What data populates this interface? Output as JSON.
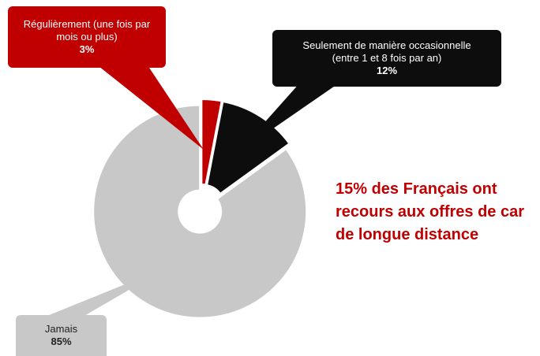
{
  "chart_data": {
    "type": "donut",
    "categories": [
      "Régulièrement (une fois par mois ou plus)",
      "Seulement de manière occasionnelle (entre 1 et 8 fois par an)",
      "Jamais"
    ],
    "values": [
      3,
      12,
      85
    ],
    "value_labels": [
      "3%",
      "12%",
      "85%"
    ],
    "colors": [
      "#c00000",
      "#0d0d0d",
      "#c8c8c8"
    ],
    "annotation": "15% des Français ont recours aux offres de car de longue distance"
  }
}
